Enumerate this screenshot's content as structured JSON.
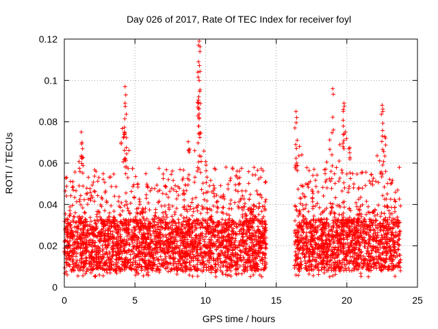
{
  "chart_data": {
    "type": "scatter",
    "title": "Day 026 of 2017, Rate Of TEC Index for receiver foyl",
    "xlabel": "GPS time / hours",
    "ylabel": "ROTI / TECUs",
    "xlim": [
      0,
      25
    ],
    "ylim": [
      0,
      0.12
    ],
    "x_ticks": [
      0,
      5,
      10,
      15,
      20,
      25
    ],
    "x_tick_labels": [
      "0",
      "5",
      "10",
      "15",
      "20",
      "25"
    ],
    "y_ticks": [
      0,
      0.02,
      0.04,
      0.06,
      0.08,
      0.1,
      0.12
    ],
    "y_tick_labels": [
      "0",
      "0.02",
      "0.04",
      "0.06",
      "0.08",
      "0.1",
      "0.12"
    ],
    "grid": true,
    "marker": "plus",
    "color": "#ff0000",
    "series": [
      {
        "name": "ROTI",
        "segments": [
          {
            "x_start": 0.0,
            "x_end": 14.3
          },
          {
            "x_start": 16.3,
            "x_end": 23.8
          }
        ],
        "typical_range": [
          0.005,
          0.04
        ],
        "peaks": [
          {
            "x": 9.55,
            "y": 0.119
          },
          {
            "x": 9.5,
            "y": 0.117
          },
          {
            "x": 9.6,
            "y": 0.114
          },
          {
            "x": 9.45,
            "y": 0.104
          },
          {
            "x": 9.55,
            "y": 0.1
          },
          {
            "x": 9.5,
            "y": 0.089
          },
          {
            "x": 4.3,
            "y": 0.097
          },
          {
            "x": 4.35,
            "y": 0.093
          },
          {
            "x": 4.3,
            "y": 0.089
          },
          {
            "x": 4.25,
            "y": 0.075
          },
          {
            "x": 19.0,
            "y": 0.096
          },
          {
            "x": 19.8,
            "y": 0.089
          },
          {
            "x": 19.75,
            "y": 0.086
          },
          {
            "x": 22.5,
            "y": 0.088
          },
          {
            "x": 22.55,
            "y": 0.085
          },
          {
            "x": 16.4,
            "y": 0.085
          },
          {
            "x": 16.45,
            "y": 0.082
          },
          {
            "x": 1.2,
            "y": 0.075
          },
          {
            "x": 1.25,
            "y": 0.07
          },
          {
            "x": 8.8,
            "y": 0.066
          },
          {
            "x": 20.2,
            "y": 0.065
          }
        ]
      }
    ]
  }
}
